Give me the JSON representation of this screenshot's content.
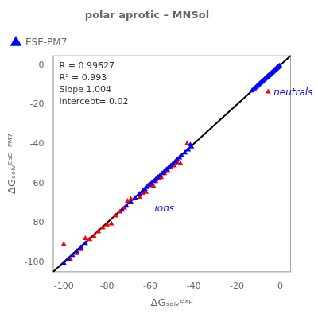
{
  "chart_data": {
    "type": "scatter",
    "title": "polar aprotic – MNSol",
    "x_label": "ΔGₛₒₗᵥᵉˣᵖ",
    "y_label": "ΔGₛₒₗᵥᴱˢᴱ⁻ᴾᴹ⁷",
    "xlim": [
      -105,
      5
    ],
    "ylim": [
      -105,
      5
    ],
    "xticks": [
      -100,
      -80,
      -60,
      -40,
      -20,
      0
    ],
    "yticks": [
      -100,
      -80,
      -60,
      -40,
      -20,
      0
    ],
    "grid": false,
    "legend": "upper left",
    "background_color": "#ffffff",
    "diagonal": {
      "x": [
        -105,
        5
      ],
      "y": [
        -105,
        5
      ],
      "color": "#000000"
    },
    "stats": [
      "R = 0.99627",
      "R² = 0.993",
      "Slope 1.004",
      "Intercept= 0.02"
    ],
    "annotations": [
      {
        "text": "neutrals",
        "x": -3,
        "y": -14,
        "color": "#0000ff"
      },
      {
        "text": "ions",
        "x": -58,
        "y": -73,
        "color": "#0000ff"
      }
    ],
    "series": [
      {
        "color": "#ff0000",
        "marker": "triangle",
        "x": [
          -5.5,
          -43.0,
          -46.0,
          -47.5,
          -49.0,
          -50.5,
          -52.0,
          -53.5,
          -55.0,
          -56.0,
          -57.5,
          -58.5,
          -60.0,
          -61.0,
          -62.0,
          -63.5,
          -65.0,
          -67.0,
          -69.0,
          -70.5,
          -72.0,
          -74.0,
          -76.0,
          -78.0,
          -80.0,
          -82.0,
          -84.0,
          -86.0,
          -88.0,
          -90.0,
          -92.0,
          -94.0,
          -97.0,
          -100.0
        ],
        "y": [
          -13.5,
          -40.0,
          -50.0,
          -49.5,
          -51.0,
          -52.0,
          -53.5,
          -55.0,
          -57.0,
          -57.5,
          -59.0,
          -61.5,
          -60.5,
          -61.0,
          -64.5,
          -65.0,
          -67.0,
          -67.5,
          -68.0,
          -69.0,
          -72.5,
          -74.5,
          -76.5,
          -80.5,
          -81.0,
          -82.5,
          -84.5,
          -87.0,
          -88.5,
          -88.0,
          -93.5,
          -95.5,
          -98.5,
          -91.0
        ]
      },
      {
        "name": "ESE-PM7",
        "color": "#0000ff",
        "marker": "triangle",
        "x": [
          -0.2,
          -0.5,
          -0.7,
          -0.9,
          -1.1,
          -1.3,
          -1.5,
          -1.7,
          -1.9,
          -2.1,
          -2.3,
          -2.5,
          -2.8,
          -3.1,
          -3.4,
          -3.7,
          -4.0,
          -4.3,
          -4.6,
          -4.9,
          -5.2,
          -5.5,
          -5.8,
          -6.1,
          -6.4,
          -6.7,
          -7.0,
          -7.4,
          -7.8,
          -8.2,
          -8.6,
          -9.0,
          -9.4,
          -9.8,
          -10.2,
          -10.6,
          -11.0,
          -11.5,
          -12.0,
          -12.5,
          -13.0,
          -41.0,
          -42.5,
          -44.0,
          -45.5,
          -46.5,
          -47.5,
          -48.5,
          -49.5,
          -50.5,
          -51.5,
          -52.5,
          -53.5,
          -54.5,
          -55.5,
          -56.5,
          -57.5,
          -58.5,
          -59.5,
          -60.5,
          -61.5,
          -62.5,
          -63.5,
          -65.0,
          -67.0,
          -69.0,
          -71.0,
          -73.0,
          -41.5,
          -90.0,
          -92.0,
          -94.0,
          -96.0,
          -98.0,
          -100.0
        ],
        "y": [
          -0.2,
          -0.5,
          -0.7,
          -0.9,
          -1.1,
          -1.3,
          -1.5,
          -1.7,
          -1.9,
          -2.1,
          -2.3,
          -2.5,
          -2.8,
          -3.1,
          -3.4,
          -3.7,
          -4.0,
          -4.3,
          -4.6,
          -4.9,
          -5.2,
          -5.5,
          -5.8,
          -6.1,
          -6.4,
          -6.7,
          -7.0,
          -7.4,
          -7.8,
          -8.2,
          -8.6,
          -9.0,
          -9.4,
          -9.8,
          -10.2,
          -10.6,
          -11.0,
          -11.5,
          -12.0,
          -12.5,
          -13.0,
          -41.5,
          -43.0,
          -44.5,
          -46.0,
          -47.0,
          -48.0,
          -49.0,
          -50.0,
          -51.0,
          -52.0,
          -53.0,
          -54.0,
          -55.0,
          -56.0,
          -57.0,
          -58.0,
          -59.0,
          -60.0,
          -61.0,
          -62.0,
          -63.0,
          -64.0,
          -65.5,
          -67.5,
          -69.5,
          -71.5,
          -73.5,
          -40.5,
          -90.5,
          -92.5,
          -94.5,
          -96.5,
          -98.5,
          -100.5
        ]
      }
    ]
  }
}
